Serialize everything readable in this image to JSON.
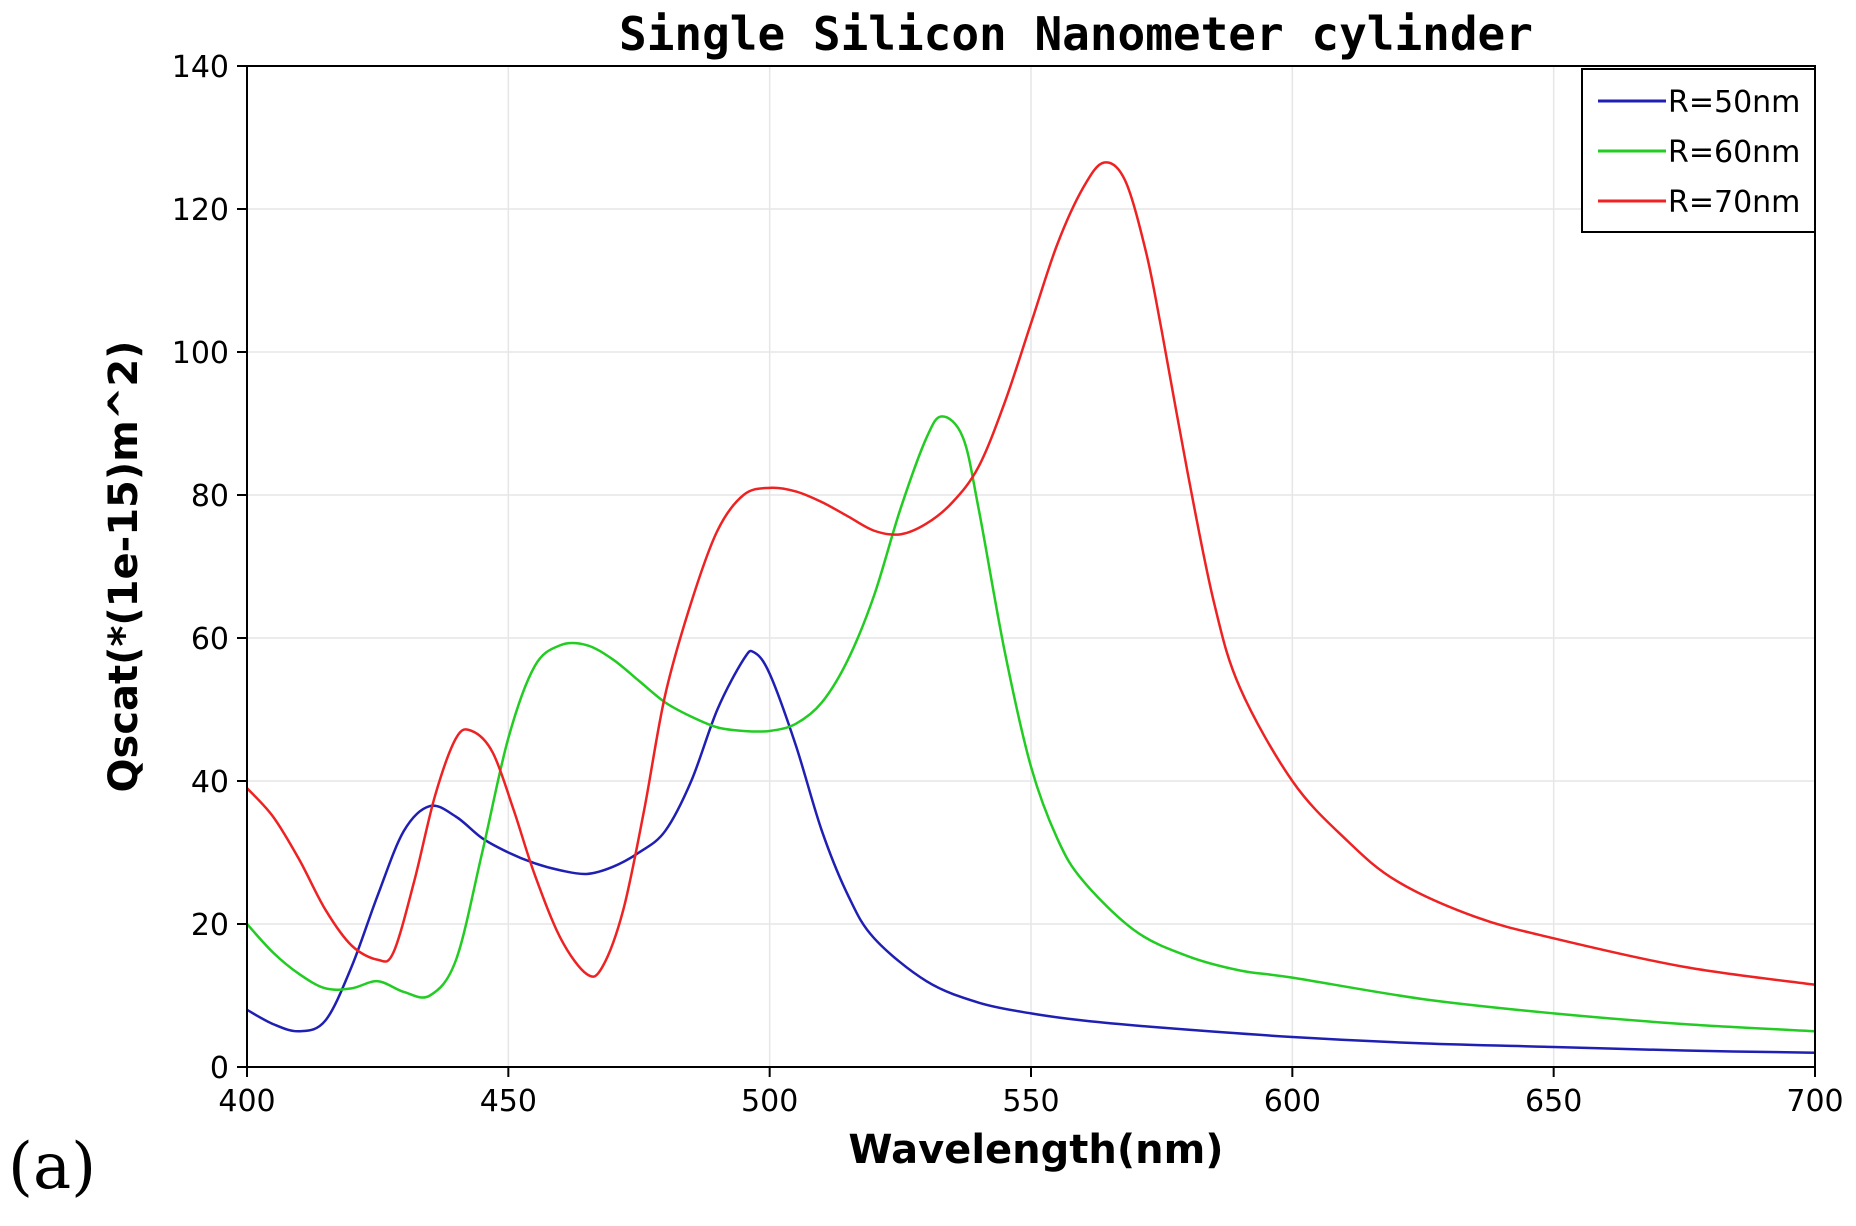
{
  "chart_data": {
    "type": "line",
    "title": "Single Silicon Nanometer cylinder",
    "xlabel": "Wavelength(nm)",
    "ylabel": "Qscat(*(1e-15)m^2)",
    "xlim": [
      400,
      700
    ],
    "ylim": [
      0,
      140
    ],
    "xticks": [
      "400",
      "450",
      "500",
      "550",
      "600",
      "650",
      "700"
    ],
    "yticks": [
      "0",
      "20",
      "40",
      "60",
      "80",
      "100",
      "120",
      "140"
    ],
    "grid": true,
    "legend_position": "top-right",
    "series": [
      {
        "name": "R=50nm",
        "color": "#1f1fb4",
        "x": [
          400,
          405,
          410,
          415,
          420,
          425,
          430,
          435,
          440,
          445,
          450,
          455,
          460,
          465,
          470,
          475,
          480,
          485,
          490,
          495,
          497,
          500,
          505,
          510,
          515,
          520,
          530,
          540,
          550,
          560,
          575,
          600,
          625,
          650,
          675,
          700
        ],
        "y": [
          8,
          6,
          5,
          6.5,
          14,
          24,
          33,
          36.5,
          35,
          32,
          30,
          28.5,
          27.5,
          27,
          28,
          30,
          33,
          40,
          50,
          57,
          58,
          55,
          45,
          33,
          24,
          18,
          12,
          9,
          7.5,
          6.5,
          5.5,
          4.2,
          3.3,
          2.8,
          2.3,
          2
        ]
      },
      {
        "name": "R=60nm",
        "color": "#22cc22",
        "x": [
          400,
          405,
          410,
          415,
          420,
          425,
          430,
          435,
          440,
          445,
          450,
          455,
          460,
          465,
          470,
          475,
          480,
          485,
          490,
          495,
          500,
          505,
          510,
          515,
          520,
          525,
          530,
          533,
          537,
          540,
          545,
          550,
          555,
          560,
          570,
          580,
          590,
          600,
          625,
          650,
          675,
          700
        ],
        "y": [
          20,
          16,
          13,
          11,
          11,
          12,
          10.5,
          10,
          15,
          30,
          46,
          56,
          59,
          59,
          57,
          54,
          51,
          49,
          47.5,
          47,
          47,
          48,
          51,
          57,
          66,
          78,
          88,
          91,
          88,
          78,
          58,
          42,
          32,
          26,
          19,
          15.5,
          13.5,
          12.5,
          9.5,
          7.5,
          6,
          5
        ]
      },
      {
        "name": "R=70nm",
        "color": "#ee2222",
        "x": [
          400,
          405,
          410,
          415,
          420,
          425,
          428,
          432,
          436,
          440,
          443,
          447,
          451,
          455,
          460,
          465,
          468,
          472,
          476,
          480,
          485,
          490,
          495,
          500,
          505,
          510,
          515,
          520,
          525,
          530,
          535,
          540,
          545,
          550,
          555,
          560,
          564,
          568,
          572,
          575,
          580,
          585,
          590,
          600,
          610,
          620,
          635,
          650,
          675,
          700
        ],
        "y": [
          39,
          35,
          29,
          22,
          17,
          15,
          16,
          26,
          38,
          46,
          47,
          44,
          36,
          27,
          18,
          13,
          14,
          22,
          36,
          52,
          65,
          75,
          80,
          81,
          80.5,
          79,
          77,
          75,
          74.5,
          76,
          79,
          84,
          93,
          104,
          115,
          123,
          126.5,
          124,
          114,
          103,
          83,
          65,
          53,
          40,
          32,
          26,
          21,
          18,
          14,
          11.5
        ]
      }
    ],
    "panel_label": "(a)"
  }
}
